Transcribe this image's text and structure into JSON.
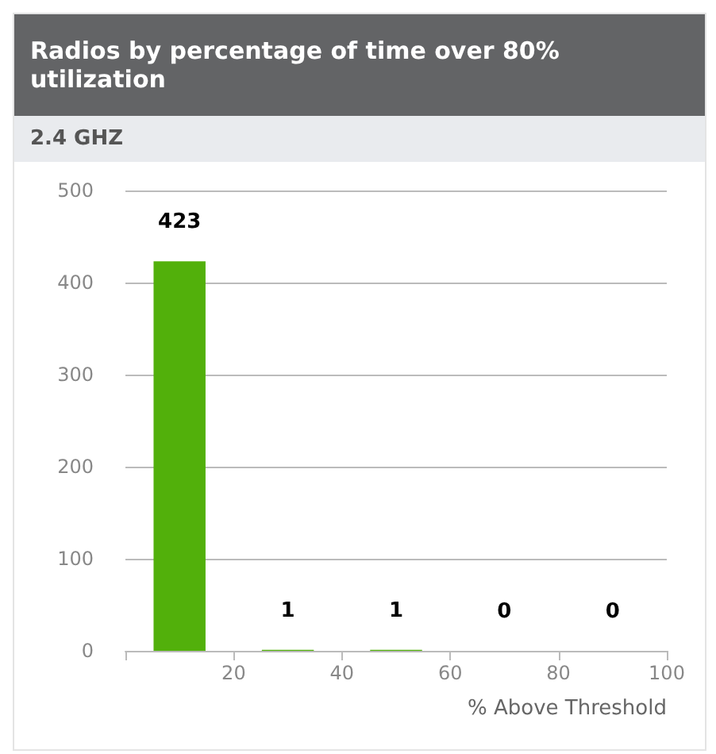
{
  "chart_data": {
    "type": "histogram",
    "title": "Radios by percentage of time over 80% utilization",
    "subtitle": "2.4 GHZ",
    "xlabel": "% Above Threshold",
    "bins": [
      0,
      20,
      40,
      60,
      80,
      100
    ],
    "values": [
      423,
      1,
      1,
      0,
      0
    ],
    "color": "#52b00b",
    "xlim": [
      0,
      100
    ],
    "xticks": [
      20,
      40,
      60,
      80,
      100
    ],
    "ylim": [
      0,
      500
    ],
    "yticks": [
      0,
      100,
      200,
      300,
      400,
      500
    ],
    "grid": "y",
    "data_labels": true
  }
}
